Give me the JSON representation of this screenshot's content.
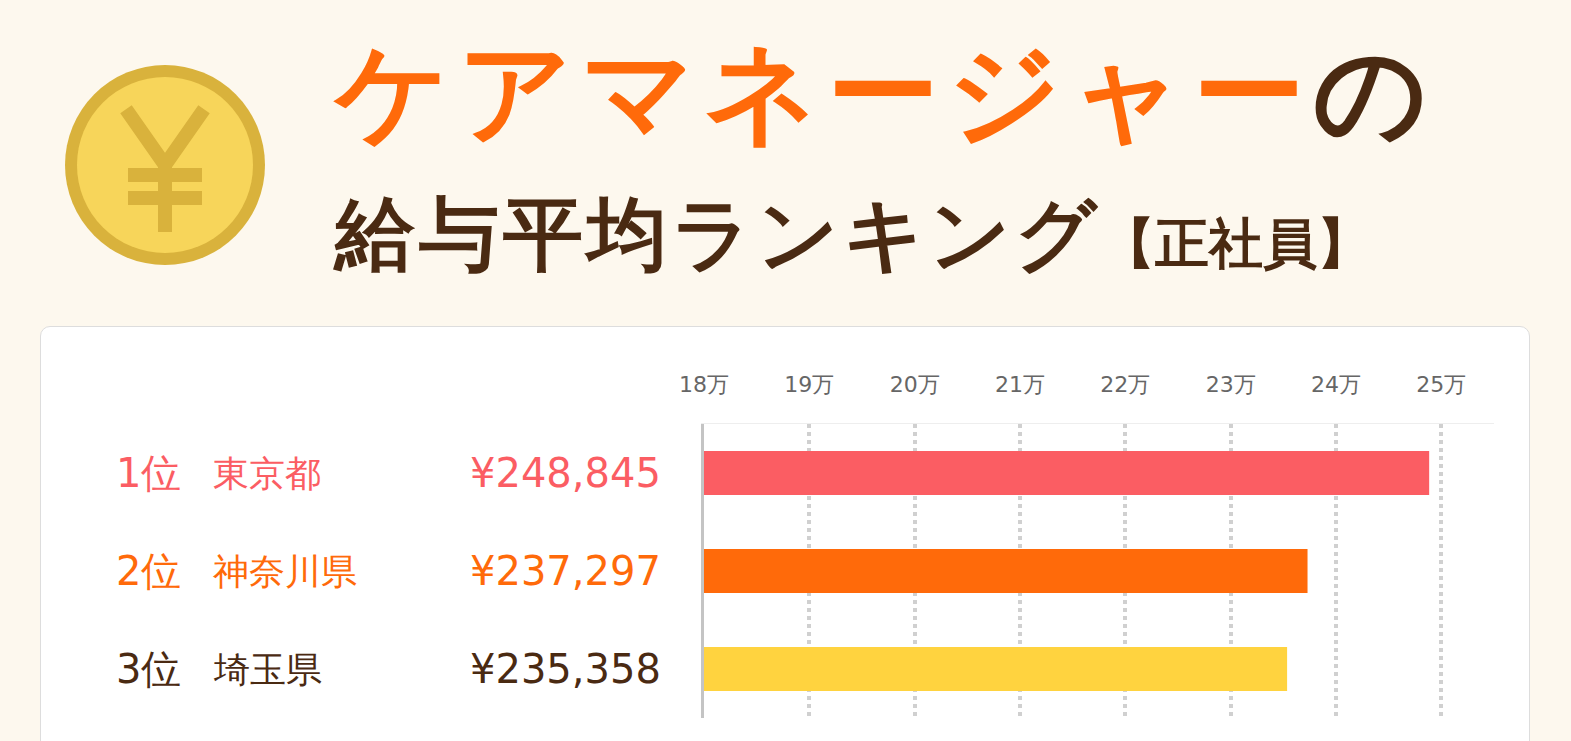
{
  "chart_data": {
    "type": "bar",
    "title": "ケアマネージャーの給与平均ランキング",
    "subtitle": "【正社員】",
    "orientation": "horizontal",
    "categories": [
      "東京都",
      "神奈川県",
      "埼玉県"
    ],
    "ranks": [
      "1位",
      "2位",
      "3位"
    ],
    "values": [
      248845,
      237297,
      235358
    ],
    "value_labels": [
      "¥248,845",
      "¥237,297",
      "¥235,358"
    ],
    "colors": [
      "#fb5d63",
      "#ff6a0a",
      "#ffd33f"
    ],
    "xlim": [
      180000,
      255000
    ],
    "xticks": [
      {
        "value": 180000,
        "label": "18万"
      },
      {
        "value": 190000,
        "label": "19万"
      },
      {
        "value": 200000,
        "label": "20万"
      },
      {
        "value": 210000,
        "label": "21万"
      },
      {
        "value": 220000,
        "label": "22万"
      },
      {
        "value": 230000,
        "label": "23万"
      },
      {
        "value": 240000,
        "label": "24万"
      },
      {
        "value": 250000,
        "label": "25万"
      }
    ],
    "grid": true,
    "data_labels": true,
    "tick_labels": "x"
  }
}
